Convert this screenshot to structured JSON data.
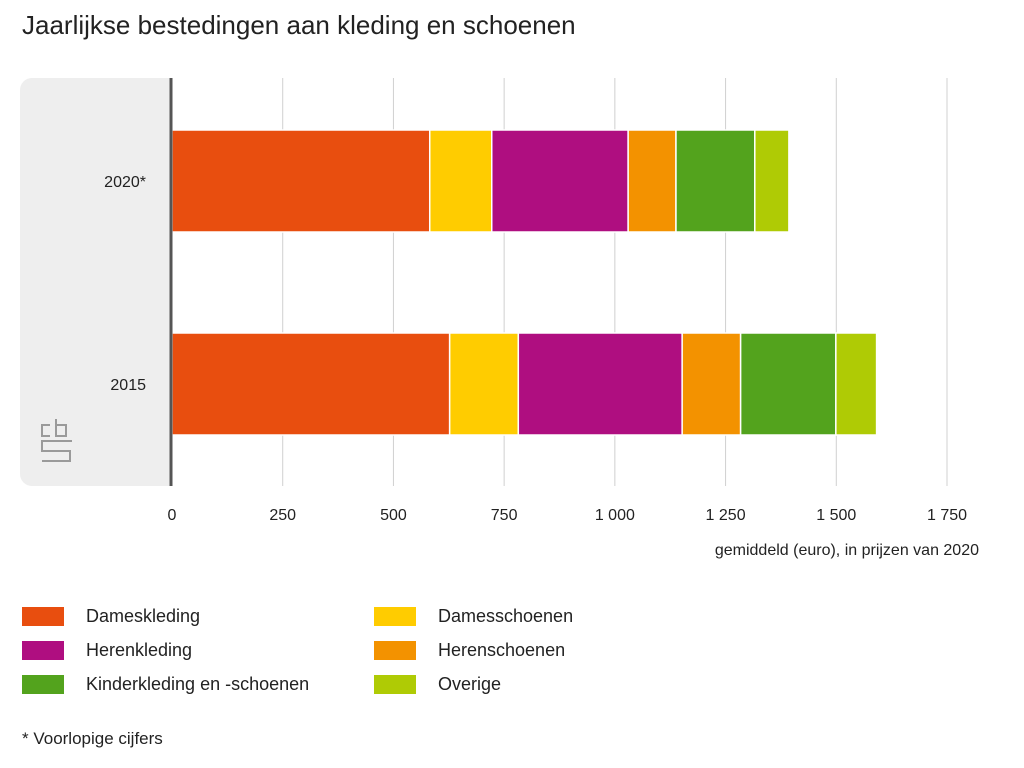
{
  "title": "Jaarlijkse bestedingen aan kleding en schoenen",
  "footnote": "* Voorlopige cijfers",
  "logo_text": "cbs",
  "chart_data": {
    "type": "bar",
    "orientation": "horizontal",
    "stacked": true,
    "title": "Jaarlijkse bestedingen aan kleding en schoenen",
    "xlabel": "gemiddeld (euro), in prijzen van 2020",
    "ylabel": "",
    "xlim": [
      0,
      1750
    ],
    "xticks": [
      0,
      250,
      500,
      750,
      1000,
      1250,
      1500,
      1750
    ],
    "xtick_labels": [
      "0",
      "250",
      "500",
      "750",
      "1 000",
      "1 250",
      "1 500",
      "1 750"
    ],
    "grid": true,
    "legend_position": "bottom",
    "categories": [
      "2020*",
      "2015"
    ],
    "series": [
      {
        "name": "Dameskleding",
        "color": "#e84e0f",
        "values": [
          582,
          627
        ]
      },
      {
        "name": "Damesschoenen",
        "color": "#ffcc00",
        "values": [
          140,
          155
        ]
      },
      {
        "name": "Herenkleding",
        "color": "#af0e80",
        "values": [
          308,
          370
        ]
      },
      {
        "name": "Herenschoenen",
        "color": "#f39200",
        "values": [
          108,
          132
        ]
      },
      {
        "name": "Kinderkleding en -schoenen",
        "color": "#53a31d",
        "values": [
          178,
          215
        ]
      },
      {
        "name": "Overige",
        "color": "#afcb05",
        "values": [
          77,
          92
        ]
      }
    ]
  }
}
